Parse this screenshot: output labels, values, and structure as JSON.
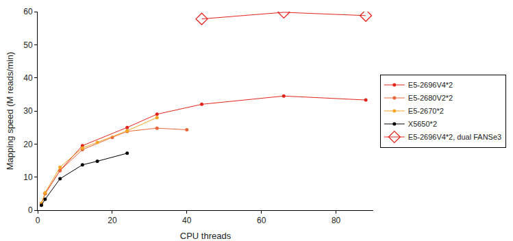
{
  "chart_data": {
    "type": "line",
    "x_label": "CPU threads",
    "y_label": "Mapping speed (M reads/min)",
    "xlim": [
      0,
      90
    ],
    "xticks": [
      0,
      20,
      40,
      60,
      80
    ],
    "ylim": [
      0,
      60
    ],
    "yticks": [
      0,
      10,
      20,
      30,
      40,
      50,
      60
    ],
    "grid": false,
    "legend": "right",
    "series": [
      {
        "name": "E5-2696V4*2",
        "color": "#e3231b",
        "marker": "circle",
        "line_style": "solid",
        "x": [
          1,
          2,
          6,
          12,
          24,
          32,
          44,
          66,
          88
        ],
        "values": [
          2,
          5,
          12,
          19.5,
          25,
          29,
          32,
          34.5,
          33.3
        ]
      },
      {
        "name": "E5-2680V2*2",
        "color": "#e8663a",
        "marker": "circle",
        "line_style": "solid",
        "x": [
          1,
          2,
          6,
          12,
          20,
          24,
          32,
          40
        ],
        "values": [
          2,
          5,
          12,
          18.3,
          22,
          23.8,
          24.8,
          24.3
        ]
      },
      {
        "name": "E5-2670*2",
        "color": "#f5a623",
        "marker": "circle",
        "line_style": "solid",
        "x": [
          1,
          2,
          6,
          12,
          16,
          24,
          32
        ],
        "values": [
          2,
          5.3,
          13,
          18.8,
          20.5,
          24,
          28
        ]
      },
      {
        "name": "X5650*2",
        "color": "#000000",
        "marker": "circle",
        "line_style": "solid",
        "x": [
          1,
          2,
          6,
          12,
          16,
          24
        ],
        "values": [
          1.5,
          3.3,
          9.5,
          13.7,
          14.8,
          17.2
        ]
      },
      {
        "name": "E5-2696V4*2, dual FANSe3",
        "color": "#e3231b",
        "marker": "diamond-open",
        "line_style": "solid",
        "x": [
          44,
          66,
          88
        ],
        "values": [
          57.8,
          59.8,
          58.8
        ]
      }
    ]
  }
}
